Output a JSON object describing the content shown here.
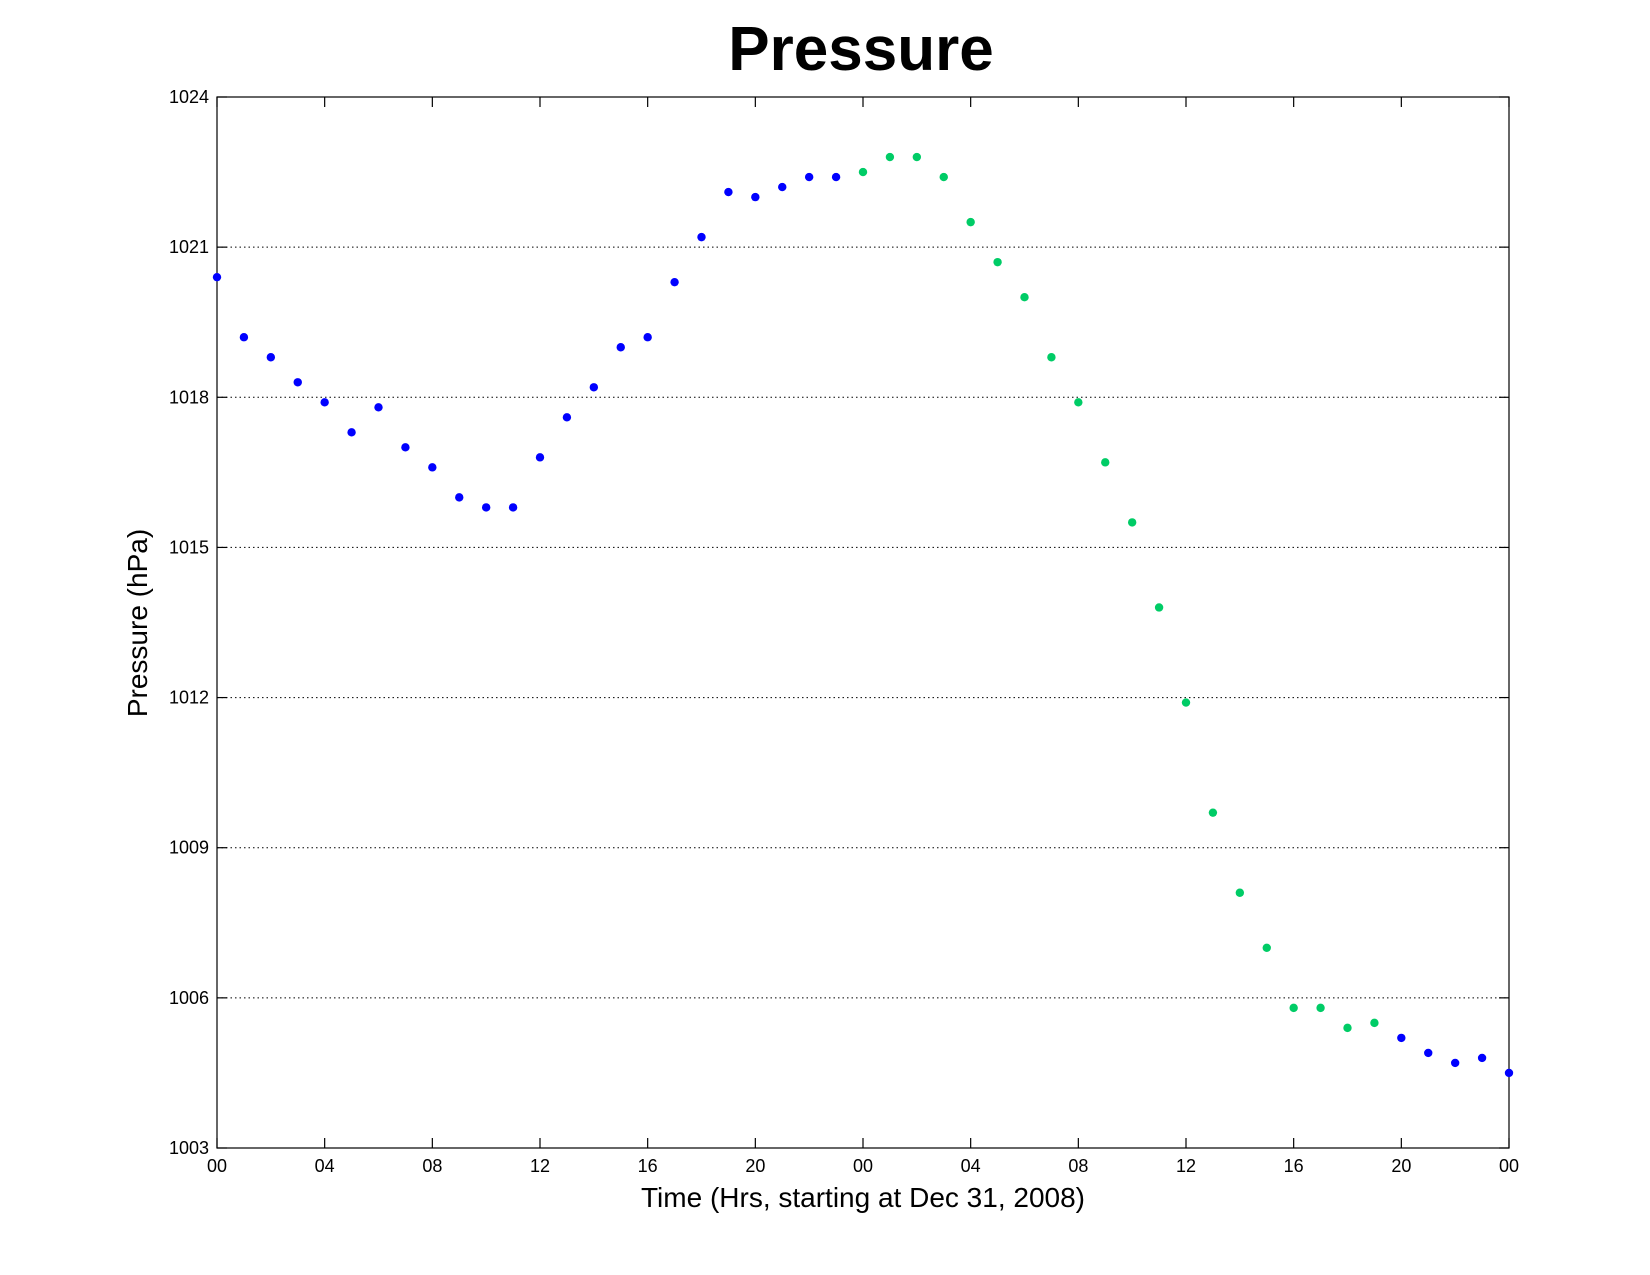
{
  "chart_data": {
    "type": "scatter",
    "title": "Pressure",
    "xlabel": "Time (Hrs, starting at Dec 31, 2008)",
    "ylabel": "Pressure (hPa)",
    "xlim": [
      0,
      48
    ],
    "ylim": [
      1003,
      1024
    ],
    "x_ticks": [
      0,
      4,
      8,
      12,
      16,
      20,
      24,
      28,
      32,
      36,
      40,
      44,
      48
    ],
    "x_tick_labels": [
      "00",
      "04",
      "08",
      "12",
      "16",
      "20",
      "00",
      "04",
      "08",
      "12",
      "16",
      "20",
      "00"
    ],
    "y_ticks": [
      1003,
      1006,
      1009,
      1012,
      1015,
      1018,
      1021,
      1024
    ],
    "y_tick_labels": [
      "1003",
      "1006",
      "1009",
      "1012",
      "1015",
      "1018",
      "1021",
      "1024"
    ],
    "grid": "horizontal dotted",
    "series": [
      {
        "color": "#0000ff",
        "x": [
          0,
          1,
          2,
          3,
          4,
          5,
          6,
          7,
          8,
          9,
          10,
          11,
          12,
          13,
          14,
          15,
          16,
          17,
          18,
          19,
          20,
          21,
          22,
          23,
          44,
          45,
          46,
          47,
          48
        ],
        "y": [
          1020.4,
          1019.2,
          1018.8,
          1018.3,
          1017.9,
          1017.3,
          1017.8,
          1017.0,
          1016.6,
          1016.0,
          1015.8,
          1015.8,
          1016.8,
          1017.6,
          1018.2,
          1019.0,
          1019.2,
          1020.3,
          1021.2,
          1022.1,
          1022.0,
          1022.2,
          1022.4,
          1022.4,
          1005.2,
          1004.9,
          1004.7,
          1004.8,
          1004.5
        ]
      },
      {
        "color": "#00cc66",
        "x": [
          24,
          25,
          26,
          27,
          28,
          29,
          30,
          31,
          32,
          33,
          34,
          35,
          36,
          37,
          38,
          39,
          40,
          41,
          42,
          43
        ],
        "y": [
          1022.5,
          1022.8,
          1022.8,
          1022.4,
          1021.5,
          1020.7,
          1020.0,
          1018.8,
          1017.9,
          1016.7,
          1015.5,
          1013.8,
          1011.9,
          1009.7,
          1008.1,
          1007.0,
          1005.8,
          1005.8,
          1005.4,
          1005.5
        ]
      }
    ]
  }
}
